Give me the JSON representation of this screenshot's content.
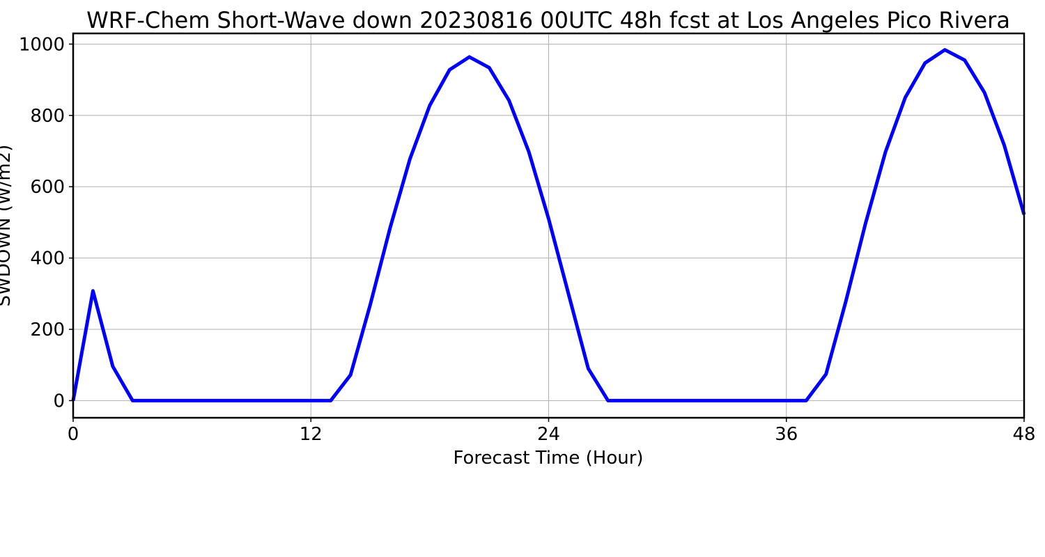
{
  "chart_data": {
    "type": "line",
    "title": "WRF-Chem Short-Wave down  20230816 00UTC 48h fcst at Los Angeles Pico Rivera",
    "xlabel": "Forecast Time (Hour)",
    "ylabel": "SWDOWN  (W/m2)",
    "xlim": [
      0,
      48
    ],
    "ylim": [
      -48,
      1030
    ],
    "xticks": [
      0,
      12,
      24,
      36,
      48
    ],
    "yticks": [
      0,
      200,
      400,
      600,
      800,
      1000
    ],
    "grid": true,
    "series": [
      {
        "color": "#0000ff",
        "x": [
          0,
          1,
          2,
          3,
          4,
          5,
          6,
          7,
          8,
          9,
          10,
          11,
          12,
          13,
          14,
          15,
          16,
          17,
          18,
          19,
          20,
          21,
          22,
          23,
          24,
          25,
          26,
          27,
          28,
          29,
          30,
          31,
          32,
          33,
          34,
          35,
          36,
          37,
          38,
          39,
          40,
          41,
          42,
          43,
          44,
          45,
          46,
          47,
          48
        ],
        "y": [
          0,
          308,
          96,
          0,
          0,
          0,
          0,
          0,
          0,
          0,
          0,
          0,
          0,
          0,
          72,
          270,
          485,
          678,
          828,
          928,
          964,
          934,
          842,
          698,
          510,
          300,
          90,
          0,
          0,
          0,
          0,
          0,
          0,
          0,
          0,
          0,
          0,
          0,
          74,
          278,
          498,
          697,
          850,
          947,
          984,
          955,
          864,
          716,
          522
        ]
      }
    ]
  }
}
